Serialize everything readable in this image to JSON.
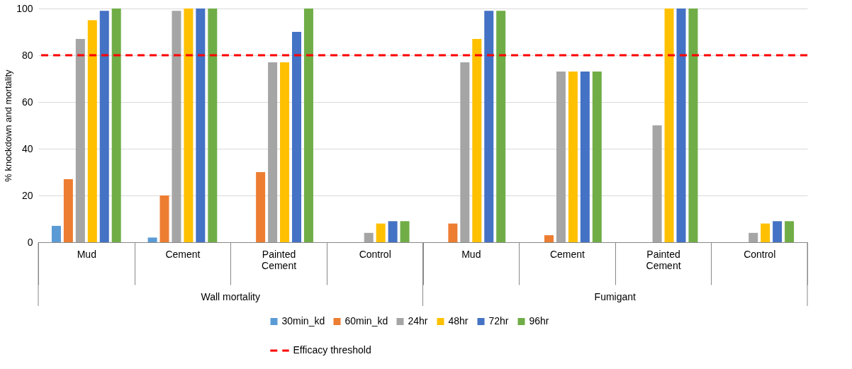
{
  "chart_data": {
    "type": "bar",
    "ylabel": "% knockdown and mortality",
    "categories": [
      "Mud",
      "Cement",
      "Painted Cement",
      "Control",
      "Mud",
      "Cement",
      "Painted Cement",
      "Control"
    ],
    "series": [
      {
        "name": "30min_kd",
        "color": "#5b9bd5",
        "values": [
          7,
          2,
          null,
          null,
          null,
          null,
          null,
          null
        ]
      },
      {
        "name": "60min_kd",
        "color": "#ed7d31",
        "values": [
          27,
          20,
          30,
          null,
          8,
          3,
          null,
          null
        ]
      },
      {
        "name": "24hr",
        "color": "#a5a5a5",
        "values": [
          87,
          99,
          77,
          4,
          77,
          73,
          50,
          4
        ]
      },
      {
        "name": "48hr",
        "color": "#ffc000",
        "values": [
          95,
          100,
          77,
          8,
          87,
          73,
          100,
          8
        ]
      },
      {
        "name": "72hr",
        "color": "#4472c4",
        "values": [
          99,
          100,
          90,
          9,
          99,
          73,
          100,
          9
        ]
      },
      {
        "name": "96hr",
        "color": "#70ad47",
        "values": [
          100,
          100,
          100,
          9,
          99,
          73,
          100,
          9
        ]
      }
    ],
    "annotations": [
      "Wall mortality",
      "Fumigant"
    ],
    "ref_lines": [
      {
        "axis": "y",
        "value": 80,
        "label": "Efficacy threshold",
        "color": "#ff0000",
        "line_style": "dashed"
      }
    ],
    "ylim": [
      0,
      100
    ],
    "yticks": [
      0,
      20,
      40,
      60,
      80,
      100
    ],
    "grid": "y",
    "legend": "bottom"
  }
}
